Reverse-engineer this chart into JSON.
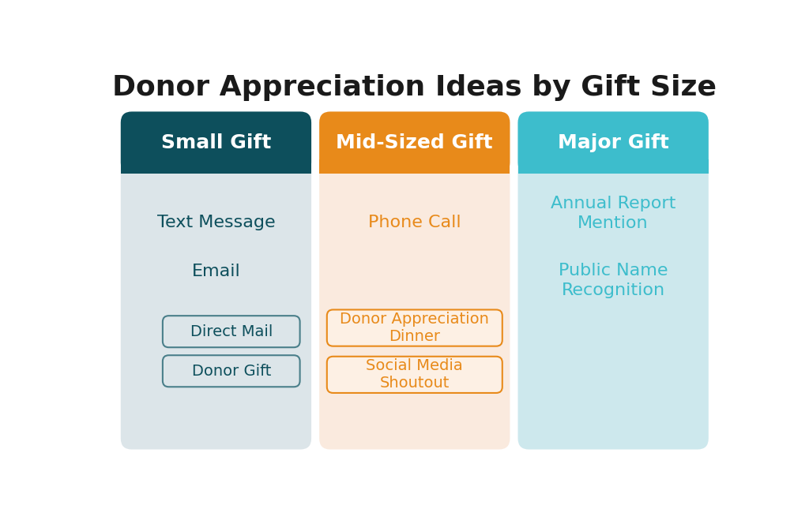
{
  "title": "Donor Appreciation Ideas by Gift Size",
  "title_fontsize": 26,
  "title_fontweight": "bold",
  "title_color": "#1a1a1a",
  "background_color": "#ffffff",
  "columns": [
    {
      "header": "Small Gift",
      "header_bg": "#0d4f5c",
      "header_text_color": "#ffffff",
      "body_bg": "#dce5e9",
      "items_plain": [
        "Text Message",
        "Email"
      ],
      "items_plain_color": "#0d4f5c",
      "items_boxed": [
        "Direct Mail",
        "Donor Gift"
      ],
      "items_boxed_color": "#0d4f5c",
      "items_boxed_border": "#4a7f8a",
      "items_boxed_fill": "#dce5e9"
    },
    {
      "header": "Mid-Sized Gift",
      "header_bg": "#e88a1a",
      "header_text_color": "#ffffff",
      "body_bg": "#faeade",
      "items_plain": [
        "Phone Call"
      ],
      "items_plain_color": "#e88a1a",
      "items_boxed": [
        "Donor Appreciation\nDinner",
        "Social Media\nShoutout"
      ],
      "items_boxed_color": "#e88a1a",
      "items_boxed_border": "#e88a1a",
      "items_boxed_fill": "#fdf0e4"
    },
    {
      "header": "Major Gift",
      "header_bg": "#3dbdcc",
      "header_text_color": "#ffffff",
      "body_bg": "#cde8ed",
      "items_plain": [
        "Annual Report\nMention",
        "Public Name\nRecognition"
      ],
      "items_plain_color": "#3dbdcc",
      "items_boxed": [],
      "items_boxed_color": "#3dbdcc",
      "items_boxed_border": "#3dbdcc",
      "items_boxed_fill": "#cde8ed"
    }
  ]
}
